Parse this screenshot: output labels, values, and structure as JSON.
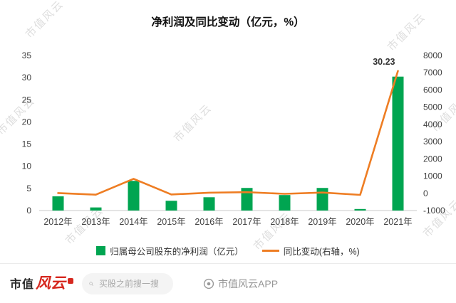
{
  "title": "净利润及同比变动（亿元，%）",
  "watermark": {
    "text": "市值风云"
  },
  "chart_data": {
    "type": "bar+line",
    "title": "净利润及同比变动（亿元，%）",
    "categories": [
      "2012年",
      "2013年",
      "2014年",
      "2015年",
      "2016年",
      "2017年",
      "2018年",
      "2019年",
      "2020年",
      "2021年"
    ],
    "series": [
      {
        "name": "归属母公司股东的净利润（亿元）",
        "type": "bar",
        "axis": "left",
        "color": "#00a551",
        "values": [
          3.2,
          0.7,
          6.7,
          2.2,
          3.0,
          5.1,
          3.5,
          5.1,
          0.35,
          30.23
        ]
      },
      {
        "name": "同比变动(右轴，%)",
        "type": "line",
        "axis": "right",
        "color": "#ee7d23",
        "values": [
          15,
          -80,
          840,
          -66,
          35,
          65,
          -30,
          45,
          -92,
          7100
        ]
      }
    ],
    "left_axis": {
      "min": 0,
      "max": 35,
      "step": 5
    },
    "right_axis": {
      "min": -1000,
      "max": 8000,
      "step": 1000
    },
    "data_labels": [
      {
        "series": 0,
        "index": 9,
        "text": "30.23"
      }
    ],
    "grid": false,
    "legend_position": "bottom"
  },
  "footer": {
    "logo": {
      "part1": "市值",
      "part2": "风云",
      "color": "#d6281f"
    },
    "search": {
      "placeholder": "买股之前搜一搜"
    },
    "brand": "市值风云APP"
  }
}
